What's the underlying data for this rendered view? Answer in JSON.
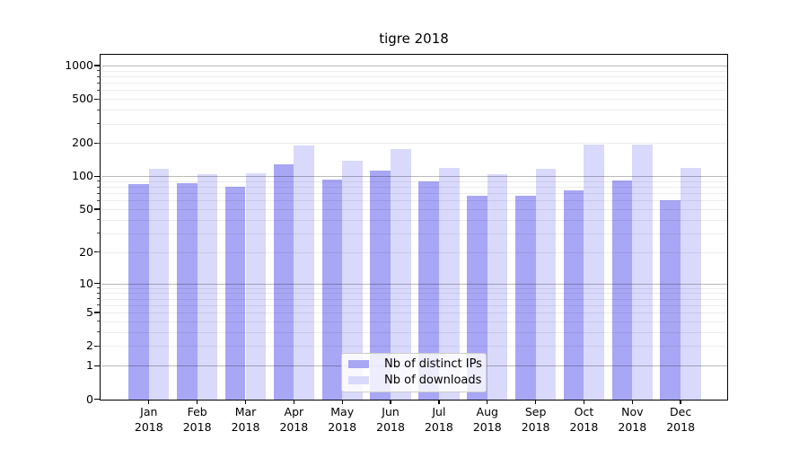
{
  "chart_data": {
    "type": "bar",
    "title": "tigre 2018",
    "x_tick_year": "2018",
    "categories": [
      "Jan",
      "Feb",
      "Mar",
      "Apr",
      "May",
      "Jun",
      "Jul",
      "Aug",
      "Sep",
      "Oct",
      "Nov",
      "Dec"
    ],
    "series": [
      {
        "name": "Nb of distinct IPs",
        "color": "#a7a7f5",
        "values": [
          85,
          87,
          80,
          129,
          93,
          112,
          90,
          66,
          66,
          75,
          91,
          61
        ]
      },
      {
        "name": "Nb of downloads",
        "color": "#d9d9fb",
        "values": [
          117,
          105,
          106,
          190,
          139,
          178,
          119,
          104,
          116,
          195,
          193,
          120
        ]
      }
    ],
    "y_axis": {
      "scale": "log1p",
      "tick_values": [
        0,
        1,
        2,
        5,
        10,
        20,
        50,
        100,
        200,
        500,
        1000
      ],
      "tick_labels": [
        "0",
        "1",
        "2",
        "5",
        "10",
        "20",
        "50",
        "100",
        "200",
        "500",
        "1000"
      ],
      "major_grid_values": [
        1,
        10,
        100,
        1000
      ],
      "ylim": [
        0,
        1250
      ],
      "grid": true
    },
    "legend": {
      "position": "lower-center",
      "entries": [
        "Nb of distinct IPs",
        "Nb of downloads"
      ]
    },
    "colors": {
      "bar_dark": "#a7a7f5",
      "bar_light": "#d9d9fb",
      "major_grid": "#b8b8b8",
      "minor_grid": "#ebebeb",
      "axis": "#000000"
    }
  }
}
